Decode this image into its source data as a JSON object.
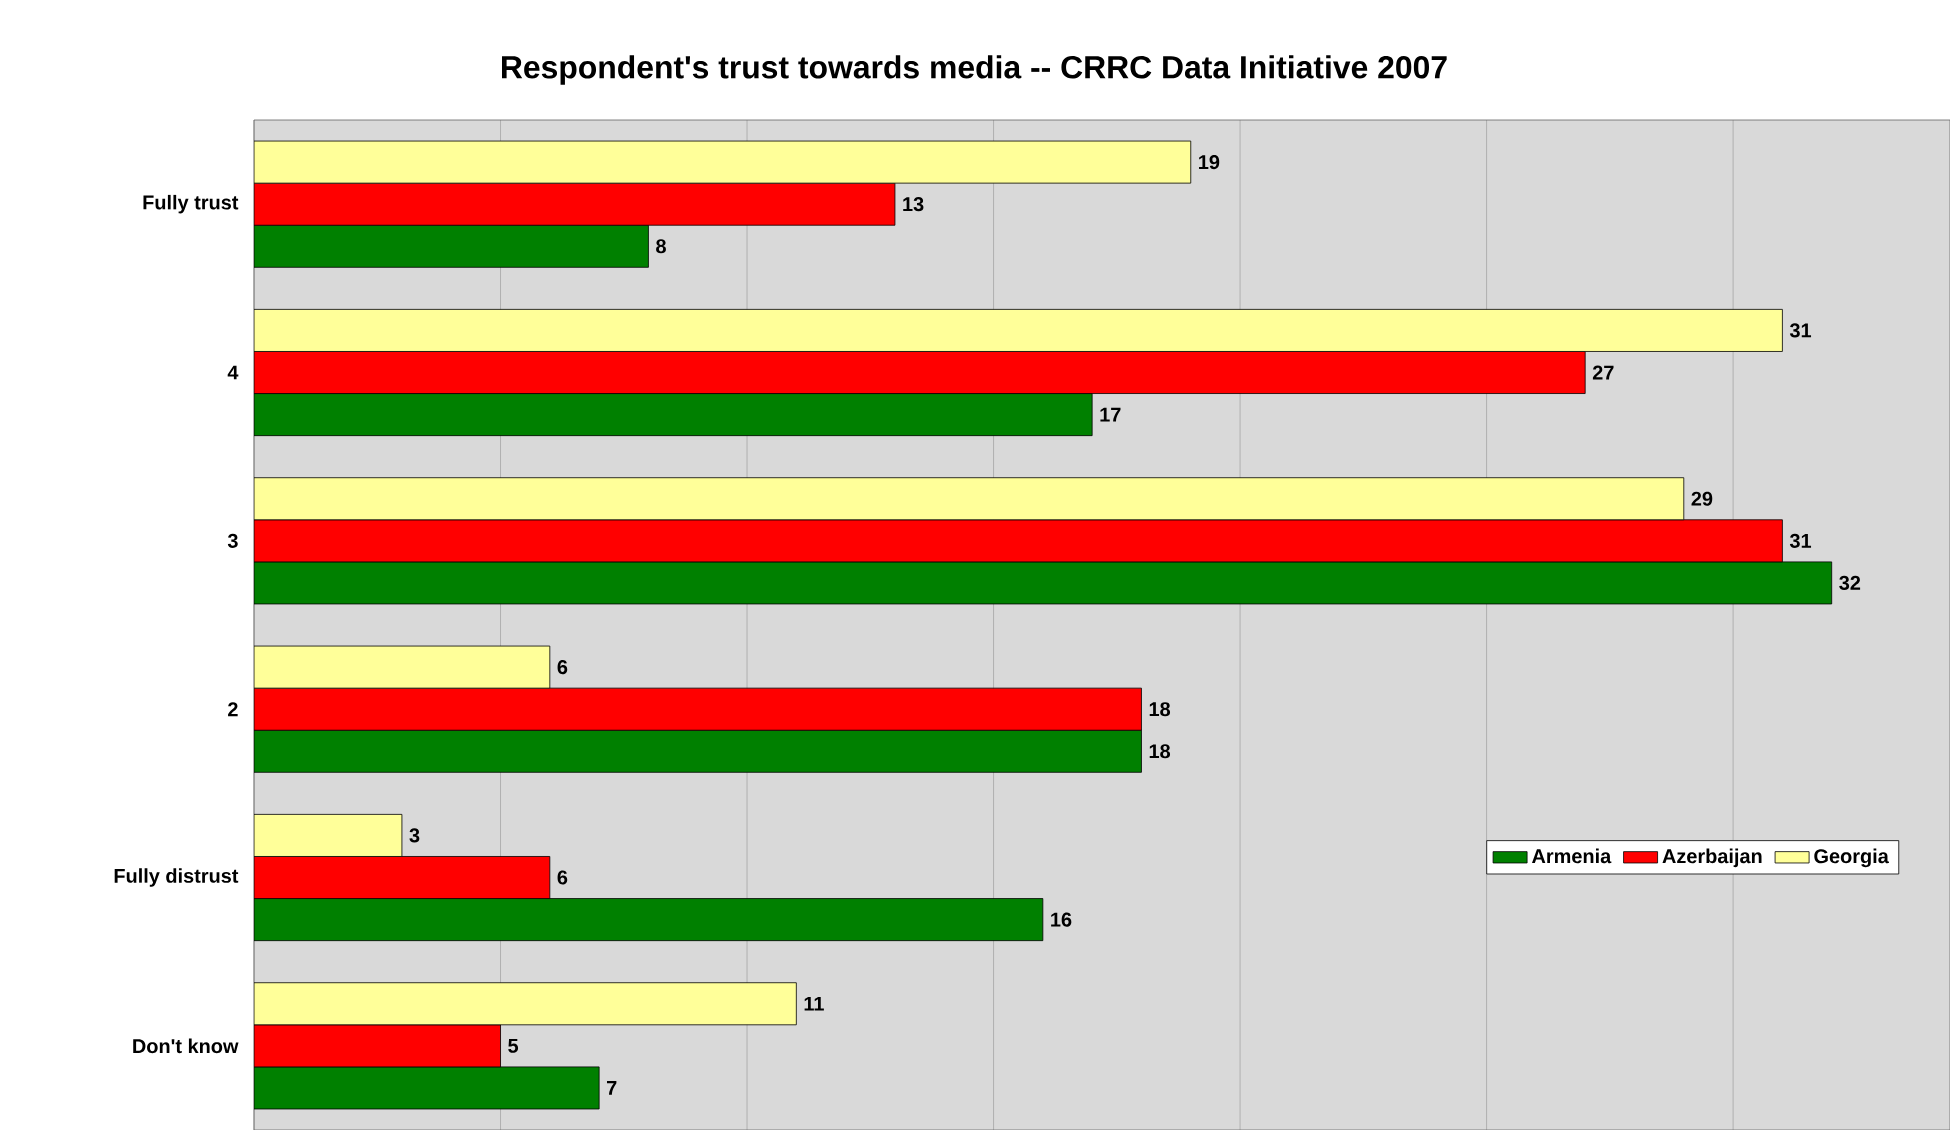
{
  "chart_data": {
    "type": "bar",
    "orientation": "horizontal",
    "title": "Respondent's trust towards media -- CRRC Data Initiative 2007",
    "categories": [
      "Fully trust",
      "4",
      "3",
      "2",
      "Fully distrust",
      "Don't know"
    ],
    "series": [
      {
        "name": "Armenia",
        "color": "#008000",
        "values": [
          8,
          17,
          32,
          18,
          16,
          7
        ]
      },
      {
        "name": "Azerbaijan",
        "color": "#ff0000",
        "values": [
          13,
          27,
          31,
          18,
          6,
          5
        ]
      },
      {
        "name": "Georgia",
        "color": "#ffff99",
        "values": [
          19,
          31,
          29,
          6,
          3,
          11
        ]
      }
    ],
    "xlim": [
      0,
      34.4
    ],
    "xticks": [
      {
        "value": 0,
        "label": null
      },
      {
        "value": 5,
        "label": null
      },
      {
        "value": 10,
        "label": null
      },
      {
        "value": 15,
        "label": null
      },
      {
        "value": 20,
        "label": null
      },
      {
        "value": 25,
        "label": null
      },
      {
        "value": 30,
        "label": null
      }
    ],
    "tick_labels": "y",
    "grid": "x",
    "legend": "bottom right",
    "data_labels": true
  }
}
